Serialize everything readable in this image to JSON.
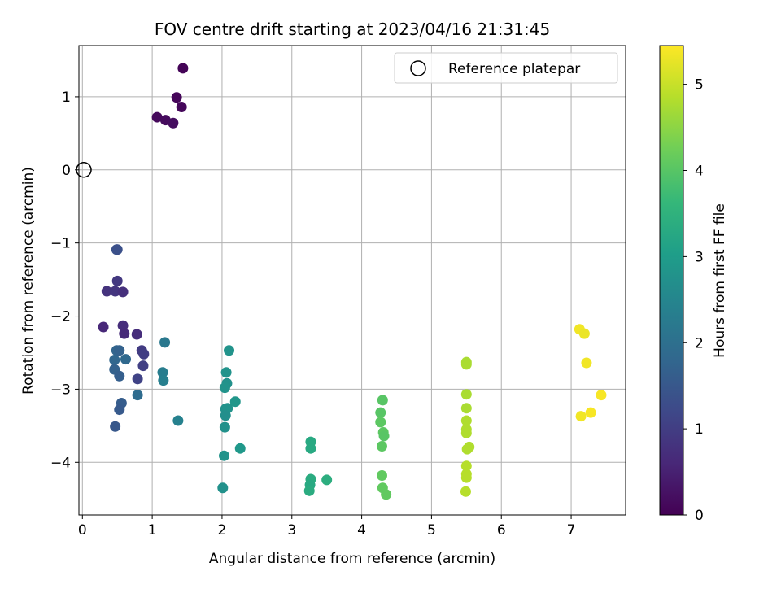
{
  "chart_data": {
    "type": "scatter",
    "title": "FOV centre drift starting at 2023/04/16 21:31:45",
    "xlabel": "Angular distance from reference (arcmin)",
    "ylabel": "Rotation from reference (arcmin)",
    "xlim": [
      -0.05,
      7.78
    ],
    "ylim": [
      -4.72,
      1.7
    ],
    "xticks": [
      0,
      1,
      2,
      3,
      4,
      5,
      6,
      7
    ],
    "yticks": [
      1,
      0,
      -1,
      -2,
      -3,
      -4
    ],
    "grid": true,
    "legend": {
      "position": "top-right",
      "label": "Reference platepar"
    },
    "reference_point": {
      "x": 0.02,
      "y": 0.0
    },
    "colorbar": {
      "label": "Hours from first FF file",
      "range": [
        0,
        5.45
      ],
      "ticks": [
        0,
        1,
        2,
        3,
        4,
        5
      ],
      "colormap": "viridis",
      "stops": [
        "#440154",
        "#482878",
        "#3e4989",
        "#31688e",
        "#26828e",
        "#1f9e89",
        "#35b779",
        "#6ece58",
        "#b5de2b",
        "#fde725"
      ]
    },
    "points": [
      {
        "x": 1.44,
        "y": 1.39,
        "h": 0.05
      },
      {
        "x": 1.35,
        "y": 0.99,
        "h": 0.08
      },
      {
        "x": 1.42,
        "y": 0.86,
        "h": 0.1
      },
      {
        "x": 1.07,
        "y": 0.72,
        "h": 0.12
      },
      {
        "x": 1.19,
        "y": 0.68,
        "h": 0.15
      },
      {
        "x": 1.3,
        "y": 0.64,
        "h": 0.18
      },
      {
        "x": 0.49,
        "y": -1.09,
        "h": 1.4
      },
      {
        "x": 0.5,
        "y": -1.09,
        "h": 1.35
      },
      {
        "x": 0.5,
        "y": -1.52,
        "h": 0.9
      },
      {
        "x": 0.35,
        "y": -1.66,
        "h": 0.8
      },
      {
        "x": 0.47,
        "y": -1.66,
        "h": 0.85
      },
      {
        "x": 0.58,
        "y": -1.67,
        "h": 0.75
      },
      {
        "x": 0.3,
        "y": -2.15,
        "h": 0.6
      },
      {
        "x": 0.58,
        "y": -2.13,
        "h": 0.7
      },
      {
        "x": 0.6,
        "y": -2.24,
        "h": 0.65
      },
      {
        "x": 0.78,
        "y": -2.25,
        "h": 0.7
      },
      {
        "x": 0.85,
        "y": -2.47,
        "h": 0.95
      },
      {
        "x": 0.88,
        "y": -2.52,
        "h": 1.0
      },
      {
        "x": 0.87,
        "y": -2.68,
        "h": 1.05
      },
      {
        "x": 0.49,
        "y": -2.47,
        "h": 1.75
      },
      {
        "x": 0.53,
        "y": -2.47,
        "h": 1.7
      },
      {
        "x": 0.46,
        "y": -2.6,
        "h": 1.8
      },
      {
        "x": 0.62,
        "y": -2.59,
        "h": 1.85
      },
      {
        "x": 0.46,
        "y": -2.73,
        "h": 1.7
      },
      {
        "x": 0.53,
        "y": -2.82,
        "h": 1.65
      },
      {
        "x": 0.79,
        "y": -2.86,
        "h": 1.1
      },
      {
        "x": 0.79,
        "y": -3.08,
        "h": 1.9
      },
      {
        "x": 0.56,
        "y": -3.19,
        "h": 1.6
      },
      {
        "x": 0.53,
        "y": -3.28,
        "h": 1.55
      },
      {
        "x": 0.47,
        "y": -3.51,
        "h": 1.5
      },
      {
        "x": 1.18,
        "y": -2.36,
        "h": 2.2
      },
      {
        "x": 1.15,
        "y": -2.77,
        "h": 2.3
      },
      {
        "x": 1.16,
        "y": -2.88,
        "h": 2.35
      },
      {
        "x": 1.37,
        "y": -3.43,
        "h": 2.4
      },
      {
        "x": 2.1,
        "y": -2.47,
        "h": 2.8
      },
      {
        "x": 2.06,
        "y": -2.77,
        "h": 2.8
      },
      {
        "x": 2.07,
        "y": -2.92,
        "h": 2.75
      },
      {
        "x": 2.04,
        "y": -2.98,
        "h": 2.8
      },
      {
        "x": 2.05,
        "y": -3.27,
        "h": 2.75
      },
      {
        "x": 2.08,
        "y": -3.26,
        "h": 2.8
      },
      {
        "x": 2.19,
        "y": -3.17,
        "h": 2.85
      },
      {
        "x": 2.05,
        "y": -3.36,
        "h": 2.7
      },
      {
        "x": 2.04,
        "y": -3.52,
        "h": 2.75
      },
      {
        "x": 2.26,
        "y": -3.81,
        "h": 2.9
      },
      {
        "x": 2.03,
        "y": -3.91,
        "h": 2.8
      },
      {
        "x": 2.01,
        "y": -4.35,
        "h": 2.75
      },
      {
        "x": 3.27,
        "y": -3.72,
        "h": 3.3
      },
      {
        "x": 3.27,
        "y": -3.81,
        "h": 3.3
      },
      {
        "x": 3.27,
        "y": -4.23,
        "h": 3.35
      },
      {
        "x": 3.26,
        "y": -4.31,
        "h": 3.3
      },
      {
        "x": 3.25,
        "y": -4.39,
        "h": 3.35
      },
      {
        "x": 3.5,
        "y": -4.24,
        "h": 3.4
      },
      {
        "x": 4.3,
        "y": -3.15,
        "h": 4.0
      },
      {
        "x": 4.27,
        "y": -3.32,
        "h": 4.0
      },
      {
        "x": 4.27,
        "y": -3.45,
        "h": 4.05
      },
      {
        "x": 4.31,
        "y": -3.59,
        "h": 4.05
      },
      {
        "x": 4.32,
        "y": -3.64,
        "h": 4.0
      },
      {
        "x": 4.29,
        "y": -3.78,
        "h": 4.05
      },
      {
        "x": 4.29,
        "y": -4.18,
        "h": 4.1
      },
      {
        "x": 4.3,
        "y": -4.35,
        "h": 4.1
      },
      {
        "x": 4.35,
        "y": -4.44,
        "h": 4.1
      },
      {
        "x": 5.5,
        "y": -2.63,
        "h": 4.75
      },
      {
        "x": 5.5,
        "y": -2.66,
        "h": 4.75
      },
      {
        "x": 5.5,
        "y": -3.07,
        "h": 4.75
      },
      {
        "x": 5.5,
        "y": -3.26,
        "h": 4.75
      },
      {
        "x": 5.5,
        "y": -3.43,
        "h": 4.8
      },
      {
        "x": 5.5,
        "y": -3.55,
        "h": 4.8
      },
      {
        "x": 5.5,
        "y": -3.6,
        "h": 4.8
      },
      {
        "x": 5.54,
        "y": -3.79,
        "h": 4.8
      },
      {
        "x": 5.51,
        "y": -3.82,
        "h": 4.8
      },
      {
        "x": 5.5,
        "y": -4.05,
        "h": 4.85
      },
      {
        "x": 5.5,
        "y": -4.16,
        "h": 4.85
      },
      {
        "x": 5.5,
        "y": -4.21,
        "h": 4.85
      },
      {
        "x": 5.49,
        "y": -4.4,
        "h": 4.85
      },
      {
        "x": 7.12,
        "y": -2.18,
        "h": 5.35
      },
      {
        "x": 7.19,
        "y": -2.24,
        "h": 5.3
      },
      {
        "x": 7.22,
        "y": -2.64,
        "h": 5.35
      },
      {
        "x": 7.43,
        "y": -3.08,
        "h": 5.4
      },
      {
        "x": 7.28,
        "y": -3.32,
        "h": 5.4
      },
      {
        "x": 7.14,
        "y": -3.37,
        "h": 5.35
      }
    ]
  }
}
